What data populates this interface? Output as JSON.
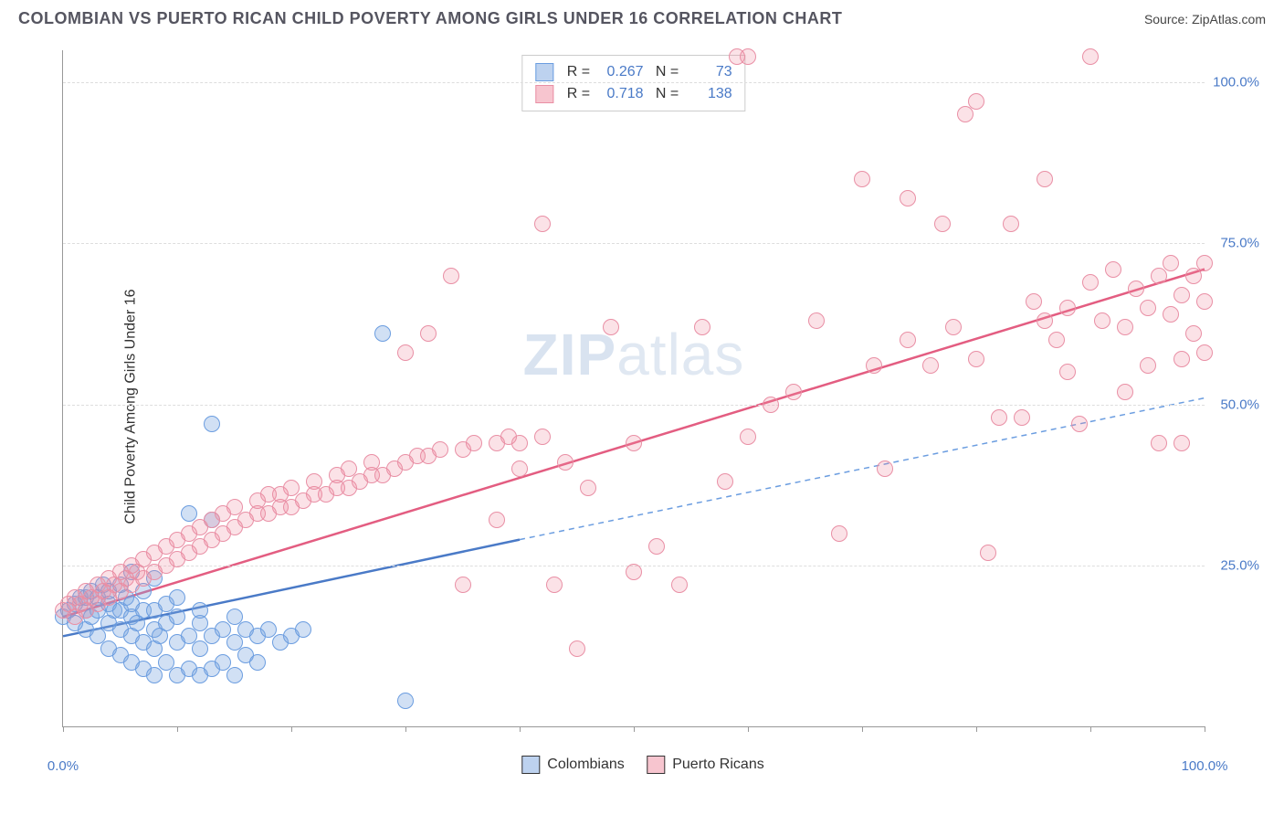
{
  "header": {
    "title": "COLOMBIAN VS PUERTO RICAN CHILD POVERTY AMONG GIRLS UNDER 16 CORRELATION CHART",
    "source": "Source: ZipAtlas.com"
  },
  "watermark": {
    "bold": "ZIP",
    "thin": "atlas"
  },
  "chart": {
    "type": "scatter",
    "ylabel": "Child Poverty Among Girls Under 16",
    "xlim": [
      0,
      100
    ],
    "ylim": [
      0,
      105
    ],
    "x_ticks": [
      0,
      10,
      20,
      30,
      40,
      50,
      60,
      70,
      80,
      90,
      100
    ],
    "x_tick_labels": {
      "0": "0.0%",
      "100": "100.0%"
    },
    "y_gridlines": [
      25,
      50,
      75,
      100
    ],
    "y_tick_labels": {
      "25": "25.0%",
      "50": "50.0%",
      "75": "75.0%",
      "100": "100.0%"
    },
    "background_color": "#ffffff",
    "grid_color": "#dddddd",
    "axis_color": "#999999",
    "label_color": "#4a7ac7",
    "title_color": "#555560",
    "title_fontsize": 18,
    "label_fontsize": 16,
    "tick_fontsize": 15,
    "marker_size": 16,
    "series": [
      {
        "name": "Colombians",
        "color_fill": "rgba(124,166,224,0.35)",
        "color_stroke": "#6b9de0",
        "R": "0.267",
        "N": "73",
        "trend_line": {
          "x1": 0,
          "y1": 14,
          "x2": 40,
          "y2": 29,
          "solid": true,
          "stroke": "#4a7ac7",
          "width": 2.5
        },
        "trend_ext": {
          "x1": 40,
          "y1": 29,
          "x2": 100,
          "y2": 51,
          "solid": false,
          "stroke": "#6b9de0",
          "width": 1.5
        },
        "points": [
          [
            0,
            17
          ],
          [
            0.5,
            18
          ],
          [
            1,
            16
          ],
          [
            1,
            19
          ],
          [
            1.5,
            20
          ],
          [
            2,
            15
          ],
          [
            2,
            18
          ],
          [
            2,
            20
          ],
          [
            2.5,
            17
          ],
          [
            2.5,
            21
          ],
          [
            3,
            14
          ],
          [
            3,
            18
          ],
          [
            3,
            20
          ],
          [
            3.5,
            22
          ],
          [
            4,
            12
          ],
          [
            4,
            16
          ],
          [
            4,
            19
          ],
          [
            4,
            21
          ],
          [
            4.5,
            18
          ],
          [
            5,
            11
          ],
          [
            5,
            15
          ],
          [
            5,
            18
          ],
          [
            5,
            22
          ],
          [
            5.5,
            20
          ],
          [
            6,
            10
          ],
          [
            6,
            14
          ],
          [
            6,
            17
          ],
          [
            6,
            19
          ],
          [
            6.5,
            16
          ],
          [
            7,
            9
          ],
          [
            7,
            13
          ],
          [
            7,
            18
          ],
          [
            7,
            21
          ],
          [
            8,
            8
          ],
          [
            8,
            12
          ],
          [
            8,
            15
          ],
          [
            8,
            18
          ],
          [
            8.5,
            14
          ],
          [
            9,
            10
          ],
          [
            9,
            16
          ],
          [
            9,
            19
          ],
          [
            10,
            8
          ],
          [
            10,
            13
          ],
          [
            10,
            17
          ],
          [
            10,
            20
          ],
          [
            11,
            9
          ],
          [
            11,
            14
          ],
          [
            11,
            33
          ],
          [
            12,
            8
          ],
          [
            12,
            12
          ],
          [
            12,
            16
          ],
          [
            12,
            18
          ],
          [
            13,
            9
          ],
          [
            13,
            14
          ],
          [
            13,
            32
          ],
          [
            14,
            10
          ],
          [
            14,
            15
          ],
          [
            15,
            8
          ],
          [
            15,
            13
          ],
          [
            15,
            17
          ],
          [
            16,
            11
          ],
          [
            16,
            15
          ],
          [
            17,
            10
          ],
          [
            17,
            14
          ],
          [
            18,
            15
          ],
          [
            19,
            13
          ],
          [
            20,
            14
          ],
          [
            21,
            15
          ],
          [
            13,
            47
          ],
          [
            28,
            61
          ],
          [
            30,
            4
          ],
          [
            8,
            23
          ],
          [
            6,
            24
          ]
        ]
      },
      {
        "name": "Puerto Ricans",
        "color_fill": "rgba(240,140,160,0.25)",
        "color_stroke": "#e98fa5",
        "R": "0.718",
        "N": "138",
        "trend_line": {
          "x1": 0,
          "y1": 17,
          "x2": 100,
          "y2": 71,
          "solid": true,
          "stroke": "#e35d81",
          "width": 2.5
        },
        "points": [
          [
            0,
            18
          ],
          [
            0.5,
            19
          ],
          [
            1,
            17
          ],
          [
            1,
            20
          ],
          [
            1.5,
            19
          ],
          [
            2,
            18
          ],
          [
            2,
            21
          ],
          [
            2.5,
            20
          ],
          [
            3,
            19
          ],
          [
            3,
            22
          ],
          [
            3.5,
            21
          ],
          [
            4,
            20
          ],
          [
            4,
            23
          ],
          [
            4.5,
            22
          ],
          [
            5,
            21
          ],
          [
            5,
            24
          ],
          [
            5.5,
            23
          ],
          [
            6,
            22
          ],
          [
            6,
            25
          ],
          [
            6.5,
            24
          ],
          [
            7,
            23
          ],
          [
            7,
            26
          ],
          [
            8,
            24
          ],
          [
            8,
            27
          ],
          [
            9,
            25
          ],
          [
            9,
            28
          ],
          [
            10,
            26
          ],
          [
            10,
            29
          ],
          [
            11,
            27
          ],
          [
            11,
            30
          ],
          [
            12,
            28
          ],
          [
            12,
            31
          ],
          [
            13,
            29
          ],
          [
            13,
            32
          ],
          [
            14,
            30
          ],
          [
            14,
            33
          ],
          [
            15,
            31
          ],
          [
            15,
            34
          ],
          [
            16,
            32
          ],
          [
            17,
            33
          ],
          [
            17,
            35
          ],
          [
            18,
            33
          ],
          [
            18,
            36
          ],
          [
            19,
            34
          ],
          [
            19,
            36
          ],
          [
            20,
            34
          ],
          [
            20,
            37
          ],
          [
            21,
            35
          ],
          [
            22,
            36
          ],
          [
            22,
            38
          ],
          [
            23,
            36
          ],
          [
            24,
            37
          ],
          [
            24,
            39
          ],
          [
            25,
            37
          ],
          [
            25,
            40
          ],
          [
            26,
            38
          ],
          [
            27,
            39
          ],
          [
            27,
            41
          ],
          [
            28,
            39
          ],
          [
            29,
            40
          ],
          [
            30,
            41
          ],
          [
            30,
            58
          ],
          [
            31,
            42
          ],
          [
            32,
            42
          ],
          [
            32,
            61
          ],
          [
            33,
            43
          ],
          [
            34,
            70
          ],
          [
            35,
            43
          ],
          [
            35,
            22
          ],
          [
            36,
            44
          ],
          [
            38,
            44
          ],
          [
            38,
            32
          ],
          [
            39,
            45
          ],
          [
            40,
            44
          ],
          [
            40,
            40
          ],
          [
            42,
            78
          ],
          [
            42,
            45
          ],
          [
            43,
            22
          ],
          [
            44,
            41
          ],
          [
            45,
            12
          ],
          [
            46,
            37
          ],
          [
            48,
            62
          ],
          [
            50,
            44
          ],
          [
            50,
            24
          ],
          [
            52,
            28
          ],
          [
            54,
            22
          ],
          [
            56,
            62
          ],
          [
            58,
            38
          ],
          [
            59,
            104
          ],
          [
            60,
            45
          ],
          [
            60,
            104
          ],
          [
            62,
            50
          ],
          [
            64,
            52
          ],
          [
            66,
            63
          ],
          [
            68,
            30
          ],
          [
            70,
            85
          ],
          [
            71,
            56
          ],
          [
            72,
            40
          ],
          [
            74,
            60
          ],
          [
            74,
            82
          ],
          [
            76,
            56
          ],
          [
            77,
            78
          ],
          [
            78,
            62
          ],
          [
            79,
            95
          ],
          [
            80,
            97
          ],
          [
            80,
            57
          ],
          [
            81,
            27
          ],
          [
            82,
            48
          ],
          [
            83,
            78
          ],
          [
            84,
            48
          ],
          [
            85,
            66
          ],
          [
            86,
            63
          ],
          [
            86,
            85
          ],
          [
            87,
            60
          ],
          [
            88,
            65
          ],
          [
            88,
            55
          ],
          [
            89,
            47
          ],
          [
            90,
            69
          ],
          [
            90,
            104
          ],
          [
            91,
            63
          ],
          [
            92,
            71
          ],
          [
            93,
            62
          ],
          [
            93,
            52
          ],
          [
            94,
            68
          ],
          [
            95,
            65
          ],
          [
            95,
            56
          ],
          [
            96,
            70
          ],
          [
            96,
            44
          ],
          [
            97,
            64
          ],
          [
            97,
            72
          ],
          [
            98,
            67
          ],
          [
            98,
            57
          ],
          [
            98,
            44
          ],
          [
            99,
            61
          ],
          [
            99,
            70
          ],
          [
            100,
            66
          ],
          [
            100,
            72
          ],
          [
            100,
            58
          ]
        ]
      }
    ],
    "legend": {
      "items": [
        {
          "swatch": "blue",
          "label": "Colombians"
        },
        {
          "swatch": "pink",
          "label": "Puerto Ricans"
        }
      ]
    }
  }
}
